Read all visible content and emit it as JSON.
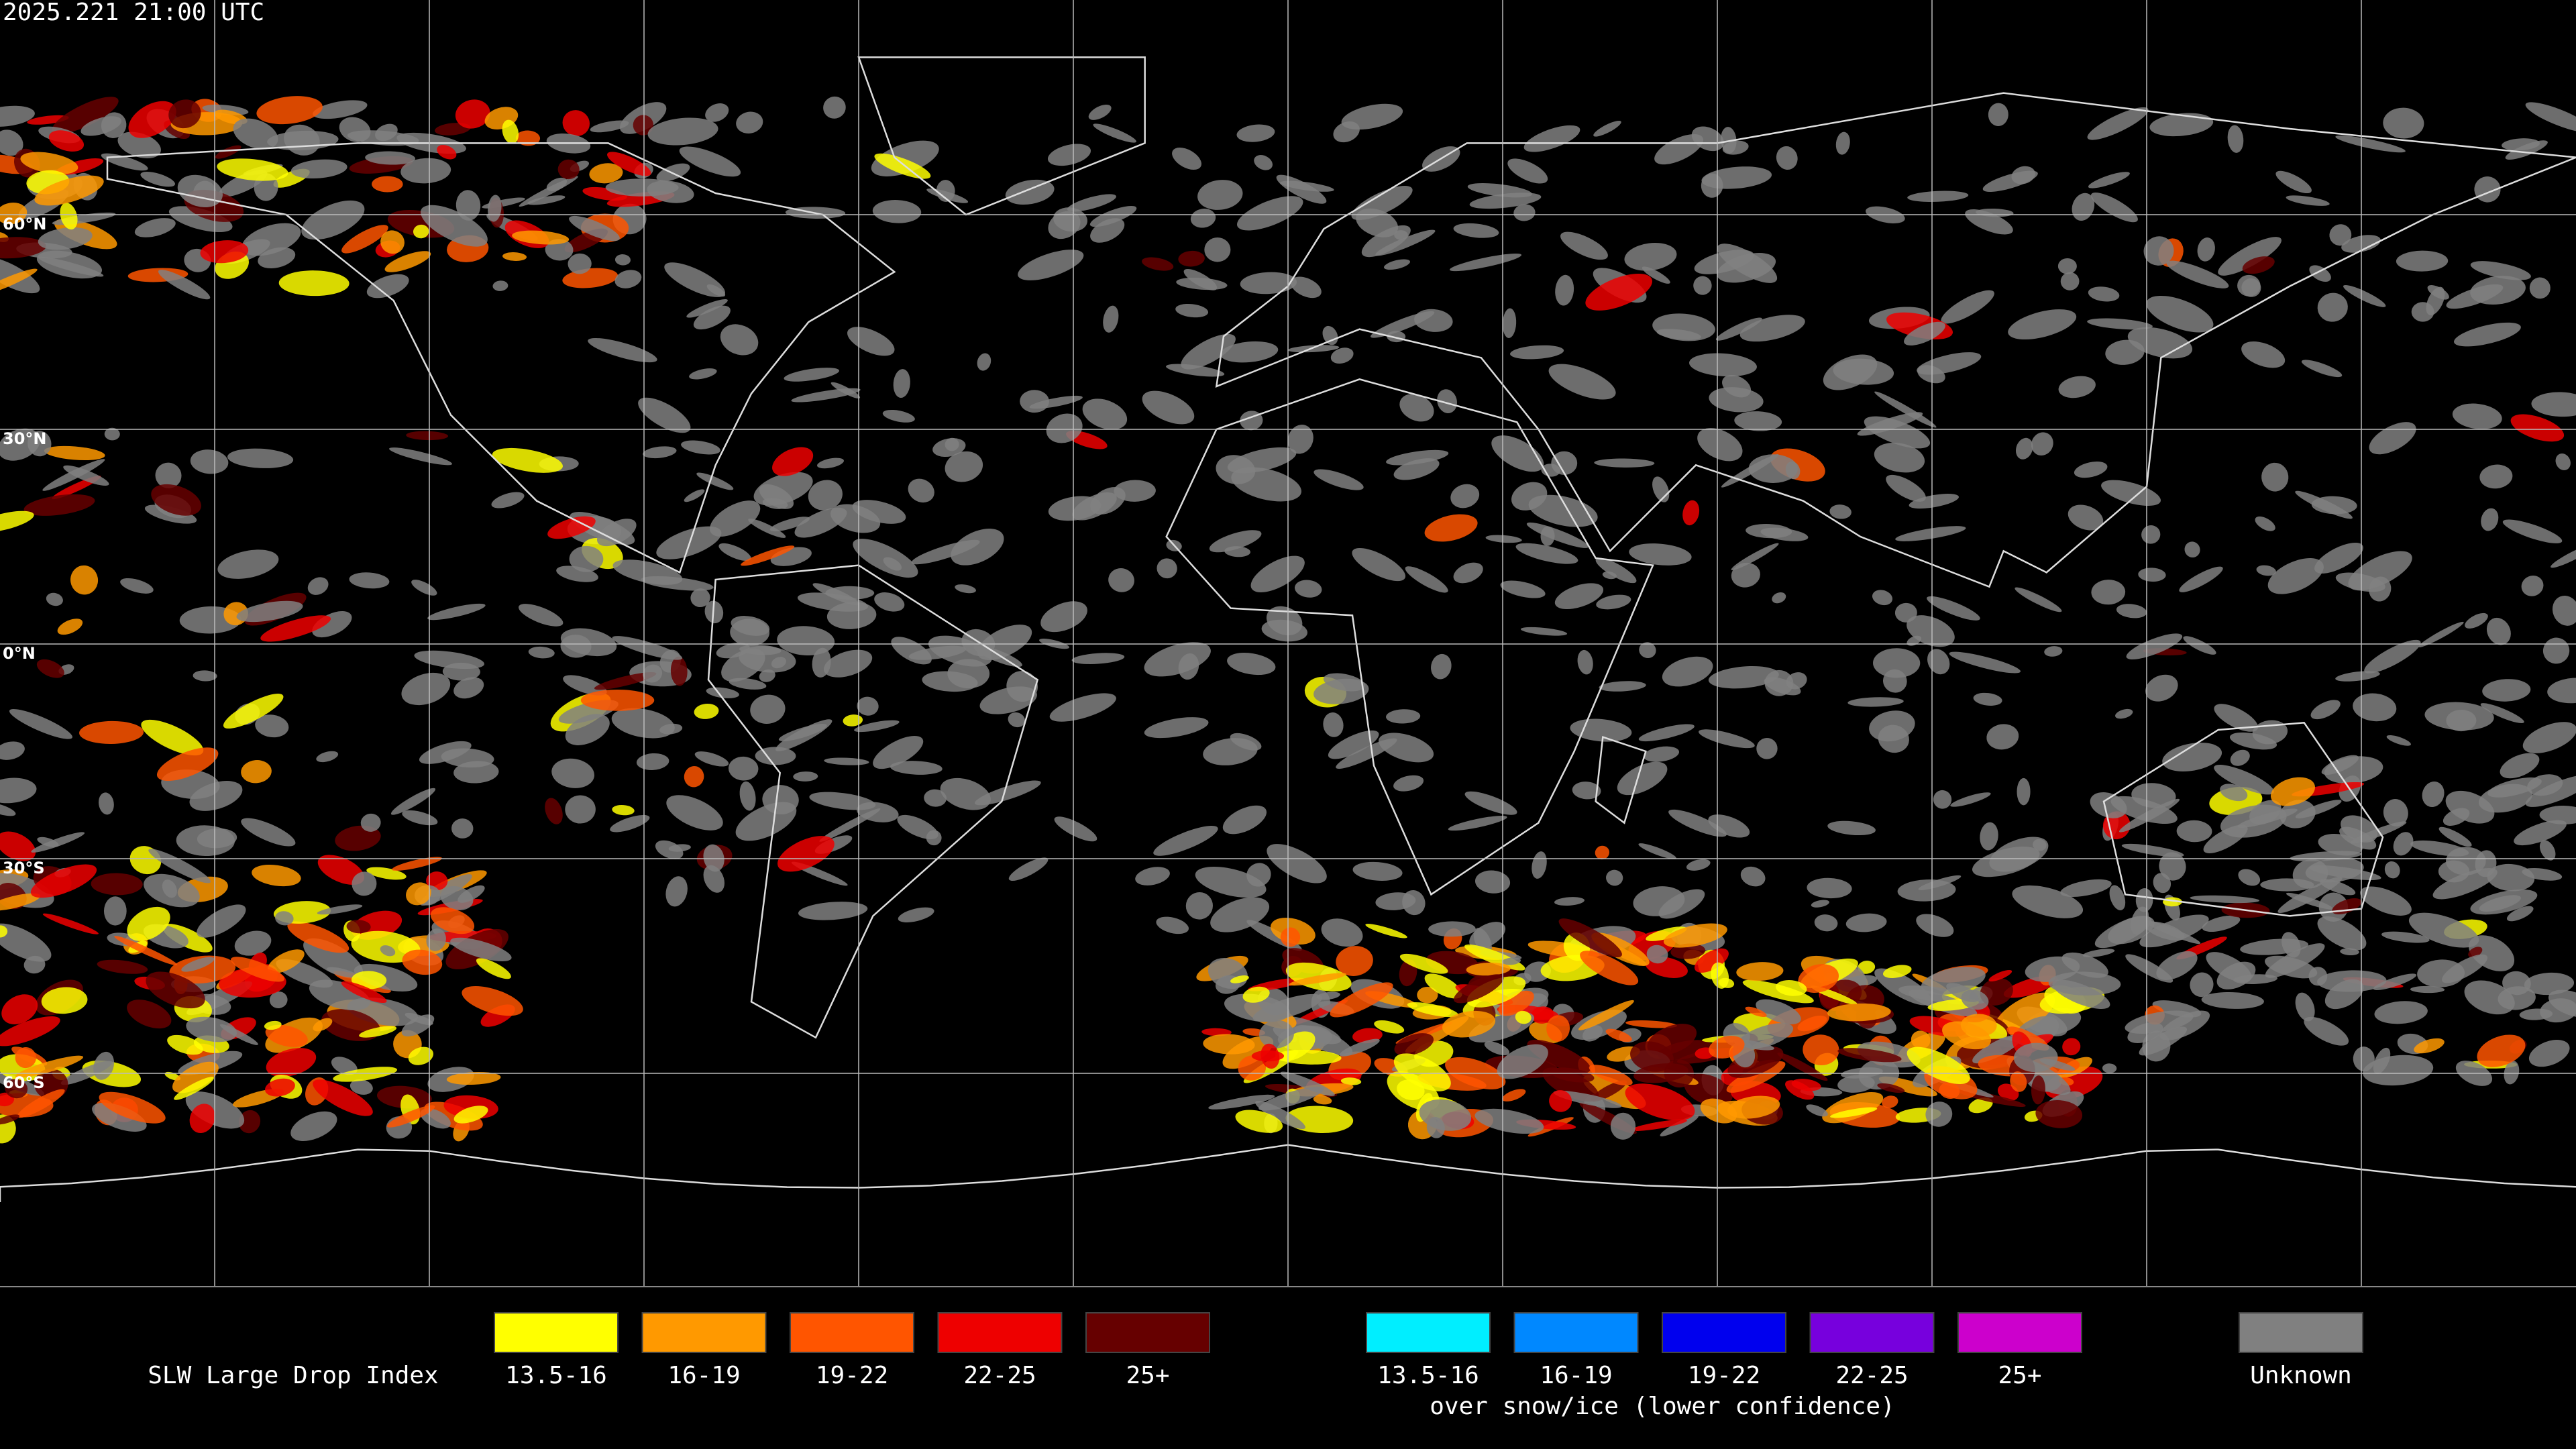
{
  "header": {
    "timestamp": "2025.221 21:00 UTC"
  },
  "map": {
    "latitude_labels": [
      "60°N",
      "30°N",
      "0°N",
      "30°S",
      "60°S"
    ]
  },
  "legend": {
    "title": "SLW Large Drop Index",
    "items": [
      {
        "label": "13.5-16",
        "color": "#ffff00"
      },
      {
        "label": "16-19",
        "color": "#ff9900"
      },
      {
        "label": "19-22",
        "color": "#ff5500"
      },
      {
        "label": "22-25",
        "color": "#ee0000"
      },
      {
        "label": "25+",
        "color": "#660000"
      }
    ],
    "snow_ice_items": [
      {
        "label": "13.5-16",
        "color": "#00eeff"
      },
      {
        "label": "16-19",
        "color": "#0088ff"
      },
      {
        "label": "19-22",
        "color": "#0000ee"
      },
      {
        "label": "22-25",
        "color": "#7700dd"
      },
      {
        "label": "25+",
        "color": "#cc00cc"
      }
    ],
    "snow_ice_note": "over snow/ice (lower confidence)",
    "unknown": {
      "label": "Unknown",
      "color": "#808080"
    }
  }
}
